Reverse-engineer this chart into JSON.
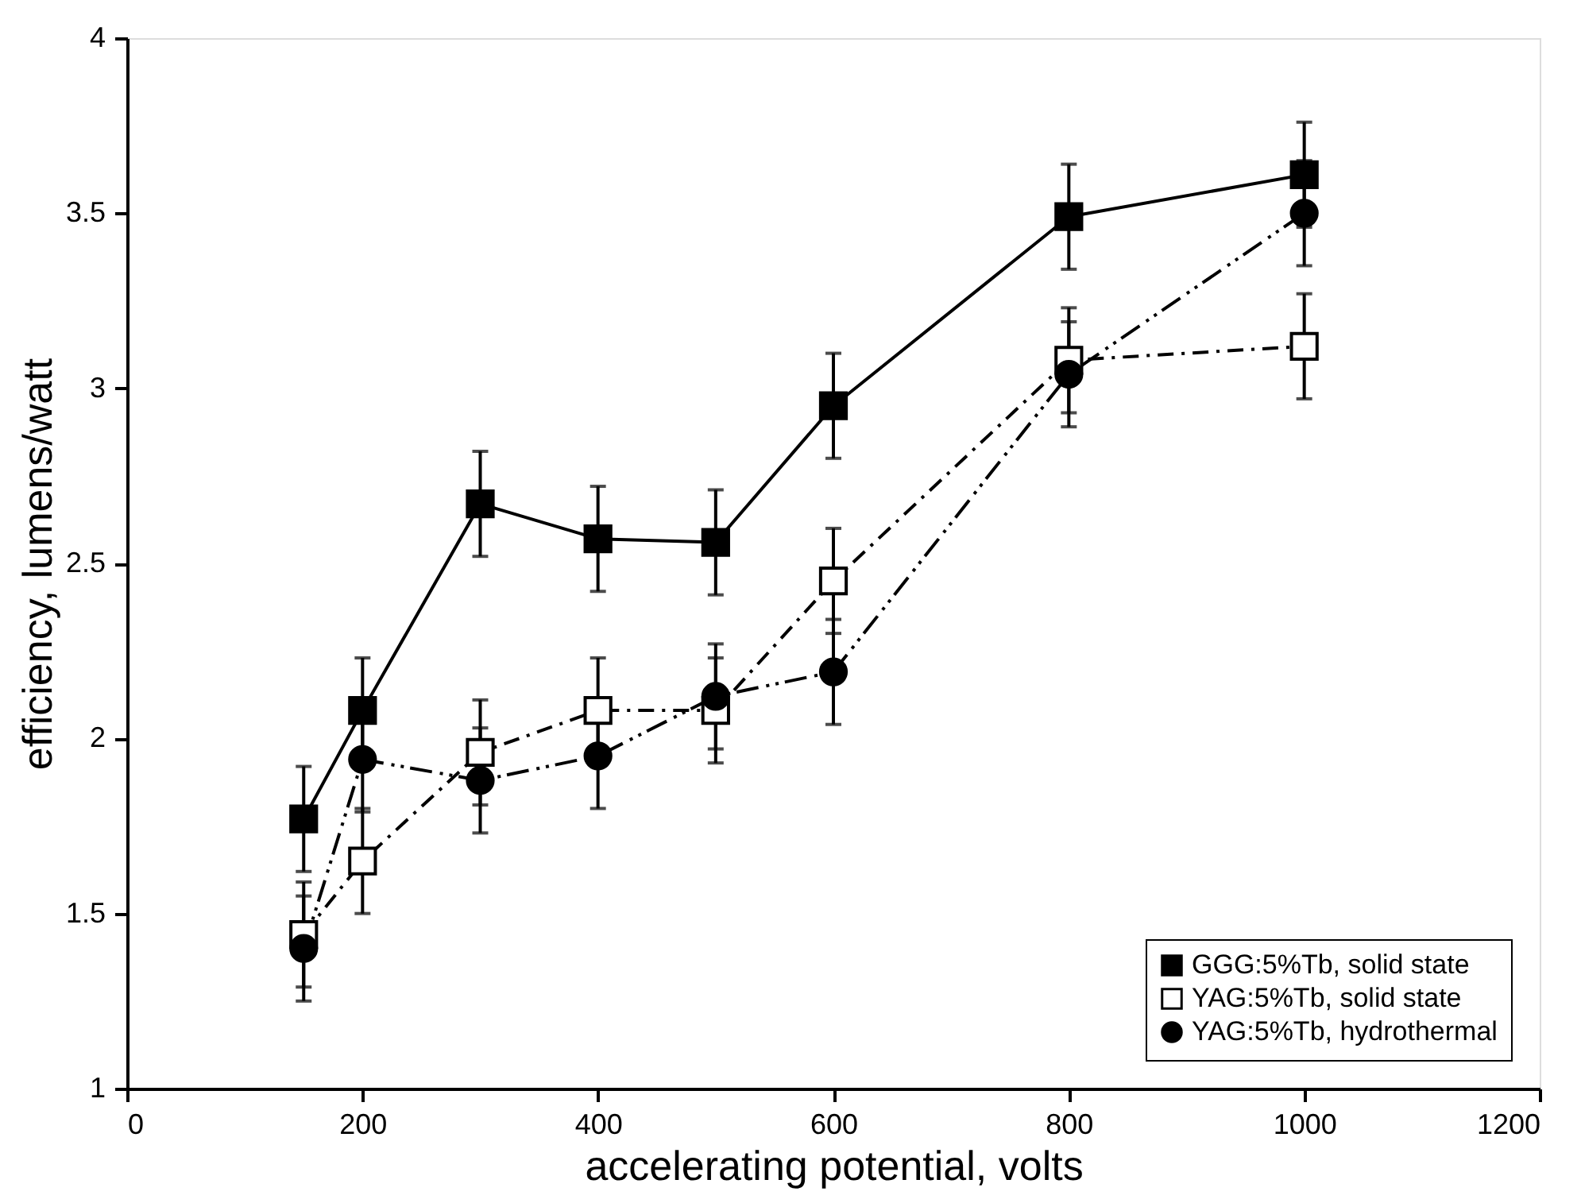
{
  "chart_data": {
    "type": "line",
    "xlabel": "accelerating potential, volts",
    "ylabel": "efficiency, lumens/watt",
    "xlim": [
      0,
      1200
    ],
    "xticks": [
      0,
      200,
      400,
      600,
      800,
      1000,
      1200
    ],
    "ylim": [
      1,
      4
    ],
    "yticks": [
      1,
      1.5,
      2,
      2.5,
      3,
      3.5,
      4
    ],
    "grid": false,
    "legend": "bottom right",
    "x": [
      150,
      200,
      300,
      400,
      500,
      600,
      800,
      1000
    ],
    "series": [
      {
        "name": "GGG:5%Tb, solid state",
        "color": "#000000",
        "marker": "square",
        "line_style": "solid",
        "values": [
          1.77,
          2.08,
          2.67,
          2.57,
          2.56,
          2.95,
          3.49,
          3.61
        ],
        "errors": [
          0.15,
          0.15,
          0.15,
          0.15,
          0.15,
          0.15,
          0.15,
          0.15
        ]
      },
      {
        "name": "YAG:5%Tb, solid state",
        "color": "#000000",
        "marker": "square",
        "line_style": "dashed",
        "values": [
          1.44,
          1.65,
          1.96,
          2.08,
          2.08,
          2.45,
          3.08,
          3.12
        ],
        "errors": [
          0.15,
          0.15,
          0.15,
          0.15,
          0.15,
          0.15,
          0.15,
          0.15
        ]
      },
      {
        "name": "YAG:5%Tb, hydrothermal",
        "color": "#000000",
        "marker": "circle",
        "line_style": "dotted",
        "values": [
          1.4,
          1.94,
          1.88,
          1.95,
          2.12,
          2.19,
          3.04,
          3.5
        ],
        "errors": [
          0.15,
          0.15,
          0.15,
          0.15,
          0.15,
          0.15,
          0.15,
          0.15
        ]
      }
    ]
  }
}
